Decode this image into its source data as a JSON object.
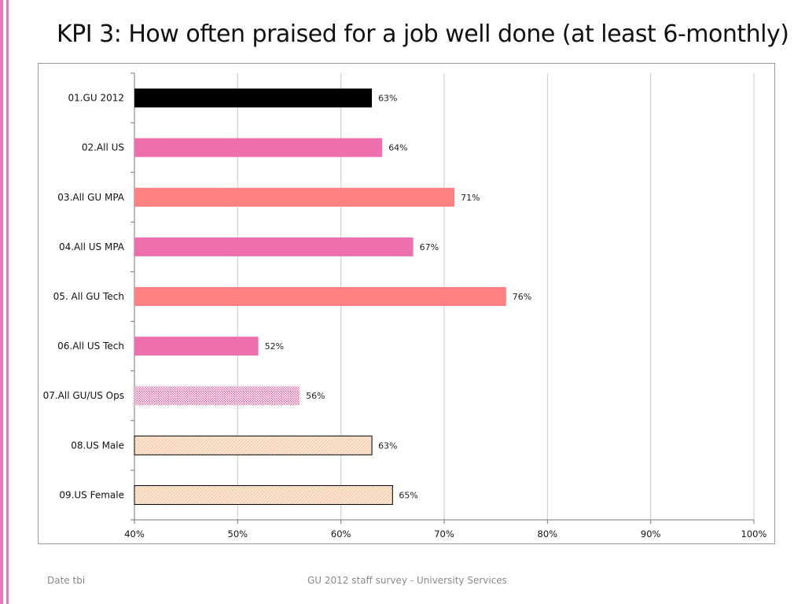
{
  "page": {
    "title": "KPI 3: How often praised for a job well done (at least 6-monthly)",
    "footer_left": "Date tbi",
    "footer_center": "GU 2012 staff survey -  University Services"
  },
  "chart_data": {
    "type": "bar",
    "orientation": "horizontal",
    "title": "",
    "xlabel": "",
    "ylabel": "",
    "xlim": [
      40,
      100
    ],
    "ticks": [
      40,
      50,
      60,
      70,
      80,
      90,
      100
    ],
    "tick_labels": [
      "40%",
      "50%",
      "60%",
      "70%",
      "80%",
      "90%",
      "100%"
    ],
    "grid": true,
    "categories": [
      "01.GU 2012",
      "02.All US",
      "03.All GU MPA",
      "04.All US MPA",
      "05. All GU Tech",
      "06.All US Tech",
      "07.All GU/US Ops",
      "08.US Male",
      "09.US Female"
    ],
    "values": [
      63,
      64,
      71,
      67,
      76,
      52,
      56,
      63,
      65
    ],
    "value_labels": [
      "63%",
      "64%",
      "71%",
      "67%",
      "76%",
      "52%",
      "56%",
      "63%",
      "65%"
    ],
    "bar_colors": [
      "#000000",
      "#ee6fae",
      "#ff8080",
      "#ee6fae",
      "#ff8080",
      "#ee6fae",
      "pattern-dots",
      "pattern-hatch",
      "pattern-hatch"
    ]
  }
}
